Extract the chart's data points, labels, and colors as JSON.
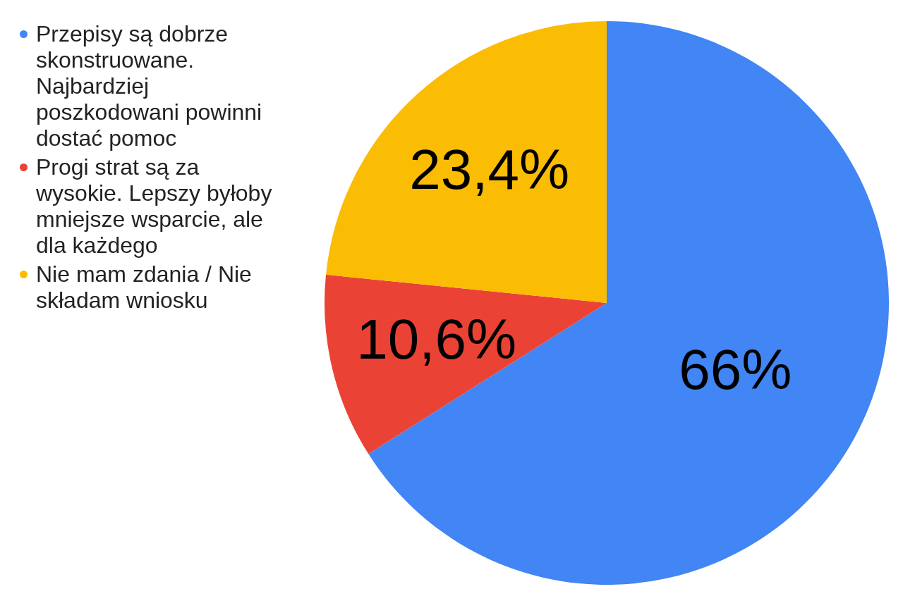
{
  "chart_data": {
    "type": "pie",
    "categories": [
      "Przepisy są dobrze skonstruowane. Najbardziej poszkodowani powinni dostać pomoc",
      "Progi strat są za wysokie. Lepszy byłoby mniejsze wsparcie, ale dla każdego",
      "Nie mam zdania / Nie składam wniosku"
    ],
    "values": [
      66,
      10.6,
      23.4
    ],
    "colors": [
      "#4285f4",
      "#ea4335",
      "#fbbc04"
    ],
    "value_labels": [
      "66%",
      "10,6%",
      "23,4%"
    ],
    "legend": "left"
  }
}
